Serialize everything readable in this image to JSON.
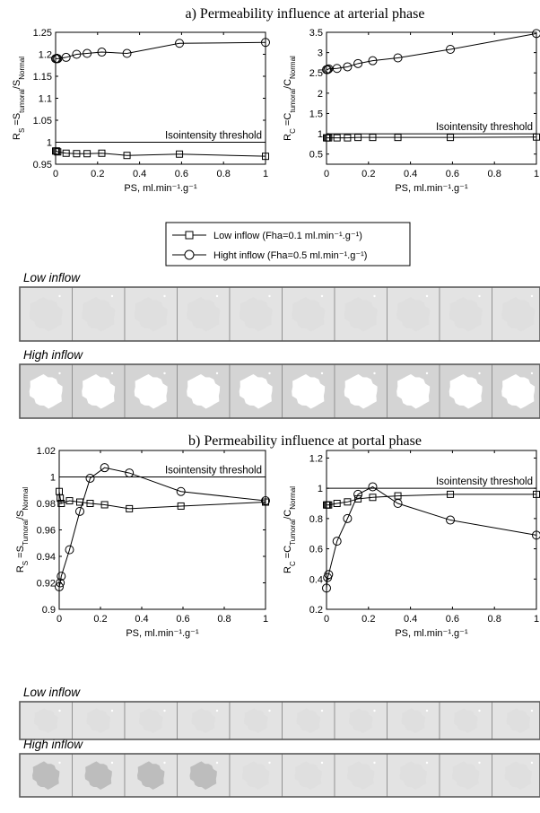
{
  "section_titles": [
    "a) Permeability influence at arterial phase",
    "b) Permeability influence at portal phase"
  ],
  "threshold_label": "Isointensity threshold",
  "legend": {
    "low": "Low inflow (Fha=0.1 ml.min⁻¹.g⁻¹)",
    "high": "Hight inflow (Fha=0.5 ml.min⁻¹.g⁻¹)"
  },
  "strip_labels": {
    "arterial_low": "Low inflow",
    "arterial_high": "High inflow",
    "portal_low": "Low inflow",
    "portal_high": "High inflow"
  },
  "colors": {
    "line": "#000000",
    "tile_light": "#e3e3e3",
    "tile_mid": "#d4d4d4",
    "blob_white": "#ffffff",
    "blob_dark": "#bdbdbd",
    "tile_border": "#5a5a5a"
  },
  "chart_data": [
    {
      "type": "line",
      "panel": "a-left",
      "xlabel": "PS, ml.min⁻¹.g⁻¹",
      "ylabel": "R_S = S_tumoral / S_Normal",
      "xlim": [
        0,
        1
      ],
      "ylim": [
        0.95,
        1.25
      ],
      "xticks": [
        "0",
        "0.2",
        "0.4",
        "0.6",
        "0.8",
        "1"
      ],
      "yticks": [
        "0.95",
        "1",
        "1.05",
        "1.1",
        "1.15",
        "1.2",
        "1.25"
      ],
      "threshold": 1.0,
      "series": [
        {
          "name": "Low inflow (Fha=0.1 ml.min⁻¹.g⁻¹)",
          "marker": "square",
          "x": [
            0,
            0.005,
            0.01,
            0.05,
            0.1,
            0.15,
            0.22,
            0.34,
            0.59,
            1.0
          ],
          "y": [
            0.98,
            0.98,
            0.978,
            0.975,
            0.974,
            0.974,
            0.975,
            0.97,
            0.973,
            0.968
          ]
        },
        {
          "name": "Hight inflow (Fha=0.5 ml.min⁻¹.g⁻¹)",
          "marker": "circle",
          "x": [
            0,
            0.005,
            0.01,
            0.05,
            0.1,
            0.15,
            0.22,
            0.34,
            0.59,
            1.0
          ],
          "y": [
            1.19,
            1.19,
            1.19,
            1.193,
            1.2,
            1.202,
            1.205,
            1.202,
            1.225,
            1.227
          ]
        }
      ]
    },
    {
      "type": "line",
      "panel": "a-right",
      "xlabel": "PS, ml.min⁻¹.g⁻¹",
      "ylabel": "R_C = C_tumoral / C_Normal",
      "xlim": [
        0,
        1
      ],
      "ylim": [
        0.25,
        3.5
      ],
      "xticks": [
        "0",
        "0.2",
        "0.4",
        "0.6",
        "0.8",
        "1"
      ],
      "yticks": [
        "0.5",
        "1",
        "1.5",
        "2",
        "2.5",
        "3",
        "3.5"
      ],
      "threshold": 1.0,
      "series": [
        {
          "name": "Low inflow (Fha=0.1 ml.min⁻¹.g⁻¹)",
          "marker": "square",
          "x": [
            0,
            0.005,
            0.01,
            0.05,
            0.1,
            0.15,
            0.22,
            0.34,
            0.59,
            1.0
          ],
          "y": [
            0.9,
            0.9,
            0.9,
            0.9,
            0.9,
            0.91,
            0.91,
            0.91,
            0.91,
            0.92
          ]
        },
        {
          "name": "Hight inflow (Fha=0.5 ml.min⁻¹.g⁻¹)",
          "marker": "circle",
          "x": [
            0,
            0.005,
            0.01,
            0.05,
            0.1,
            0.15,
            0.22,
            0.34,
            0.59,
            1.0
          ],
          "y": [
            2.58,
            2.58,
            2.6,
            2.61,
            2.65,
            2.73,
            2.8,
            2.87,
            3.08,
            3.47
          ]
        }
      ]
    },
    {
      "type": "line",
      "panel": "b-left",
      "xlabel": "PS, ml.min⁻¹.g⁻¹",
      "ylabel": "R_S = S_Tumoral / S_Normal",
      "xlim": [
        0,
        1
      ],
      "ylim": [
        0.9,
        1.02
      ],
      "xticks": [
        "0",
        "0.2",
        "0.4",
        "0.6",
        "0.8",
        "1"
      ],
      "yticks": [
        "0.9",
        "0.92",
        "0.94",
        "0.96",
        "0.98",
        "1",
        "1.02"
      ],
      "threshold": 1.0,
      "series": [
        {
          "name": "Low inflow (Fha=0.1 ml.min⁻¹.g⁻¹)",
          "marker": "square",
          "x": [
            0,
            0.005,
            0.01,
            0.05,
            0.1,
            0.15,
            0.22,
            0.34,
            0.59,
            1.0
          ],
          "y": [
            0.989,
            0.984,
            0.98,
            0.982,
            0.981,
            0.98,
            0.979,
            0.976,
            0.978,
            0.981
          ]
        },
        {
          "name": "Hight inflow (Fha=0.5 ml.min⁻¹.g⁻¹)",
          "marker": "circle",
          "x": [
            0,
            0.005,
            0.01,
            0.05,
            0.1,
            0.15,
            0.22,
            0.34,
            0.59,
            1.0
          ],
          "y": [
            0.917,
            0.92,
            0.925,
            0.945,
            0.974,
            0.999,
            1.007,
            1.003,
            0.989,
            0.982
          ]
        }
      ]
    },
    {
      "type": "line",
      "panel": "b-right",
      "xlabel": "PS, ml.min⁻¹.g⁻¹",
      "ylabel": "R_C = C_Tumoral / C_Normal",
      "xlim": [
        0,
        1
      ],
      "ylim": [
        0.2,
        1.25
      ],
      "xticks": [
        "0",
        "0.2",
        "0.4",
        "0.6",
        "0.8",
        "1"
      ],
      "yticks": [
        "0.2",
        "0.4",
        "0.6",
        "0.8",
        "1",
        "1.2"
      ],
      "threshold": 1.0,
      "series": [
        {
          "name": "Low inflow (Fha=0.1 ml.min⁻¹.g⁻¹)",
          "marker": "square",
          "x": [
            0,
            0.005,
            0.01,
            0.05,
            0.1,
            0.15,
            0.22,
            0.34,
            0.59,
            1.0
          ],
          "y": [
            0.89,
            0.89,
            0.89,
            0.9,
            0.91,
            0.93,
            0.94,
            0.95,
            0.96,
            0.96
          ]
        },
        {
          "name": "Hight inflow (Fha=0.5 ml.min⁻¹.g⁻¹)",
          "marker": "circle",
          "x": [
            0,
            0.005,
            0.01,
            0.05,
            0.1,
            0.15,
            0.22,
            0.34,
            0.59,
            1.0
          ],
          "y": [
            0.34,
            0.41,
            0.43,
            0.65,
            0.8,
            0.96,
            1.01,
            0.9,
            0.79,
            0.69
          ]
        }
      ]
    }
  ],
  "image_strips": {
    "arterial_low": [
      "faint",
      "faint",
      "faint",
      "faint",
      "faint",
      "faint",
      "faint",
      "faint",
      "faint",
      "faint"
    ],
    "arterial_high": [
      "bright",
      "bright",
      "bright",
      "bright",
      "bright",
      "bright",
      "bright",
      "bright",
      "bright",
      "bright"
    ],
    "portal_low": [
      "faint",
      "faint",
      "faint",
      "faint",
      "faint",
      "faint",
      "faint",
      "faint",
      "faint",
      "faint"
    ],
    "portal_high": [
      "dark",
      "dark",
      "dark",
      "dark",
      "faint",
      "faint",
      "faint",
      "faint",
      "faint",
      "faint"
    ]
  }
}
